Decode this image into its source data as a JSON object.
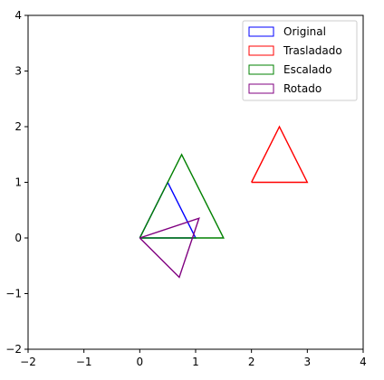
{
  "chart_data": {
    "type": "line",
    "title": "",
    "xlabel": "",
    "ylabel": "",
    "xlim": [
      -2,
      4
    ],
    "ylim": [
      -2,
      4
    ],
    "xticks": [
      -2,
      -1,
      0,
      1,
      2,
      3,
      4
    ],
    "yticks": [
      -2,
      -1,
      0,
      1,
      2,
      3,
      4
    ],
    "tick_labels_x": [
      "−2",
      "−1",
      "0",
      "1",
      "2",
      "3",
      "4"
    ],
    "tick_labels_y": [
      "−2",
      "−1",
      "0",
      "1",
      "2",
      "3",
      "4"
    ],
    "grid": false,
    "legend_position": "top-right",
    "series": [
      {
        "name": "Original",
        "color": "#0000ff",
        "points": [
          [
            0,
            0
          ],
          [
            1,
            0
          ],
          [
            0.5,
            1
          ],
          [
            0,
            0
          ]
        ]
      },
      {
        "name": "Trasladado",
        "color": "#ff0000",
        "points": [
          [
            2,
            1
          ],
          [
            3,
            1
          ],
          [
            2.5,
            2
          ],
          [
            2,
            1
          ]
        ]
      },
      {
        "name": "Escalado",
        "color": "#008000",
        "points": [
          [
            0,
            0
          ],
          [
            1.5,
            0
          ],
          [
            0.75,
            1.5
          ],
          [
            0,
            0
          ]
        ]
      },
      {
        "name": "Rotado",
        "color": "#800080",
        "points": [
          [
            0,
            0
          ],
          [
            0.707,
            -0.707
          ],
          [
            1.061,
            0.354
          ],
          [
            0,
            0
          ]
        ]
      }
    ]
  }
}
